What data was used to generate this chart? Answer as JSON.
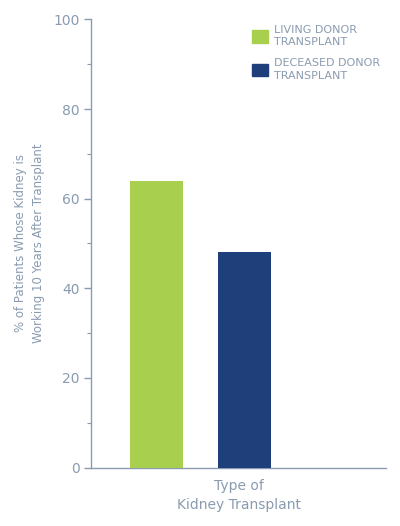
{
  "values": [
    64,
    48
  ],
  "bar_colors": [
    "#a8d04e",
    "#1e3f7a"
  ],
  "bar_width": 0.18,
  "bar_positions": [
    0.22,
    0.52
  ],
  "xlim": [
    0.0,
    1.0
  ],
  "ylim": [
    0,
    100
  ],
  "yticks": [
    0,
    20,
    40,
    60,
    80,
    100
  ],
  "ylabel_line1": "% of Patients Whose Kidney is",
  "ylabel_line2": "Working 10 Years After Transplant",
  "xlabel_line1": "Type of",
  "xlabel_line2": "Kidney Transplant",
  "legend_labels": [
    "LIVING DONOR\nTRANSPLANT",
    "DECEASED DONOR\nTRANSPLANT"
  ],
  "legend_colors": [
    "#a8d04e",
    "#1e3f7a"
  ],
  "spine_color": "#8a9bb0",
  "label_color": "#8a9bb0",
  "tick_color": "#8a9bb0",
  "background_color": "#ffffff"
}
